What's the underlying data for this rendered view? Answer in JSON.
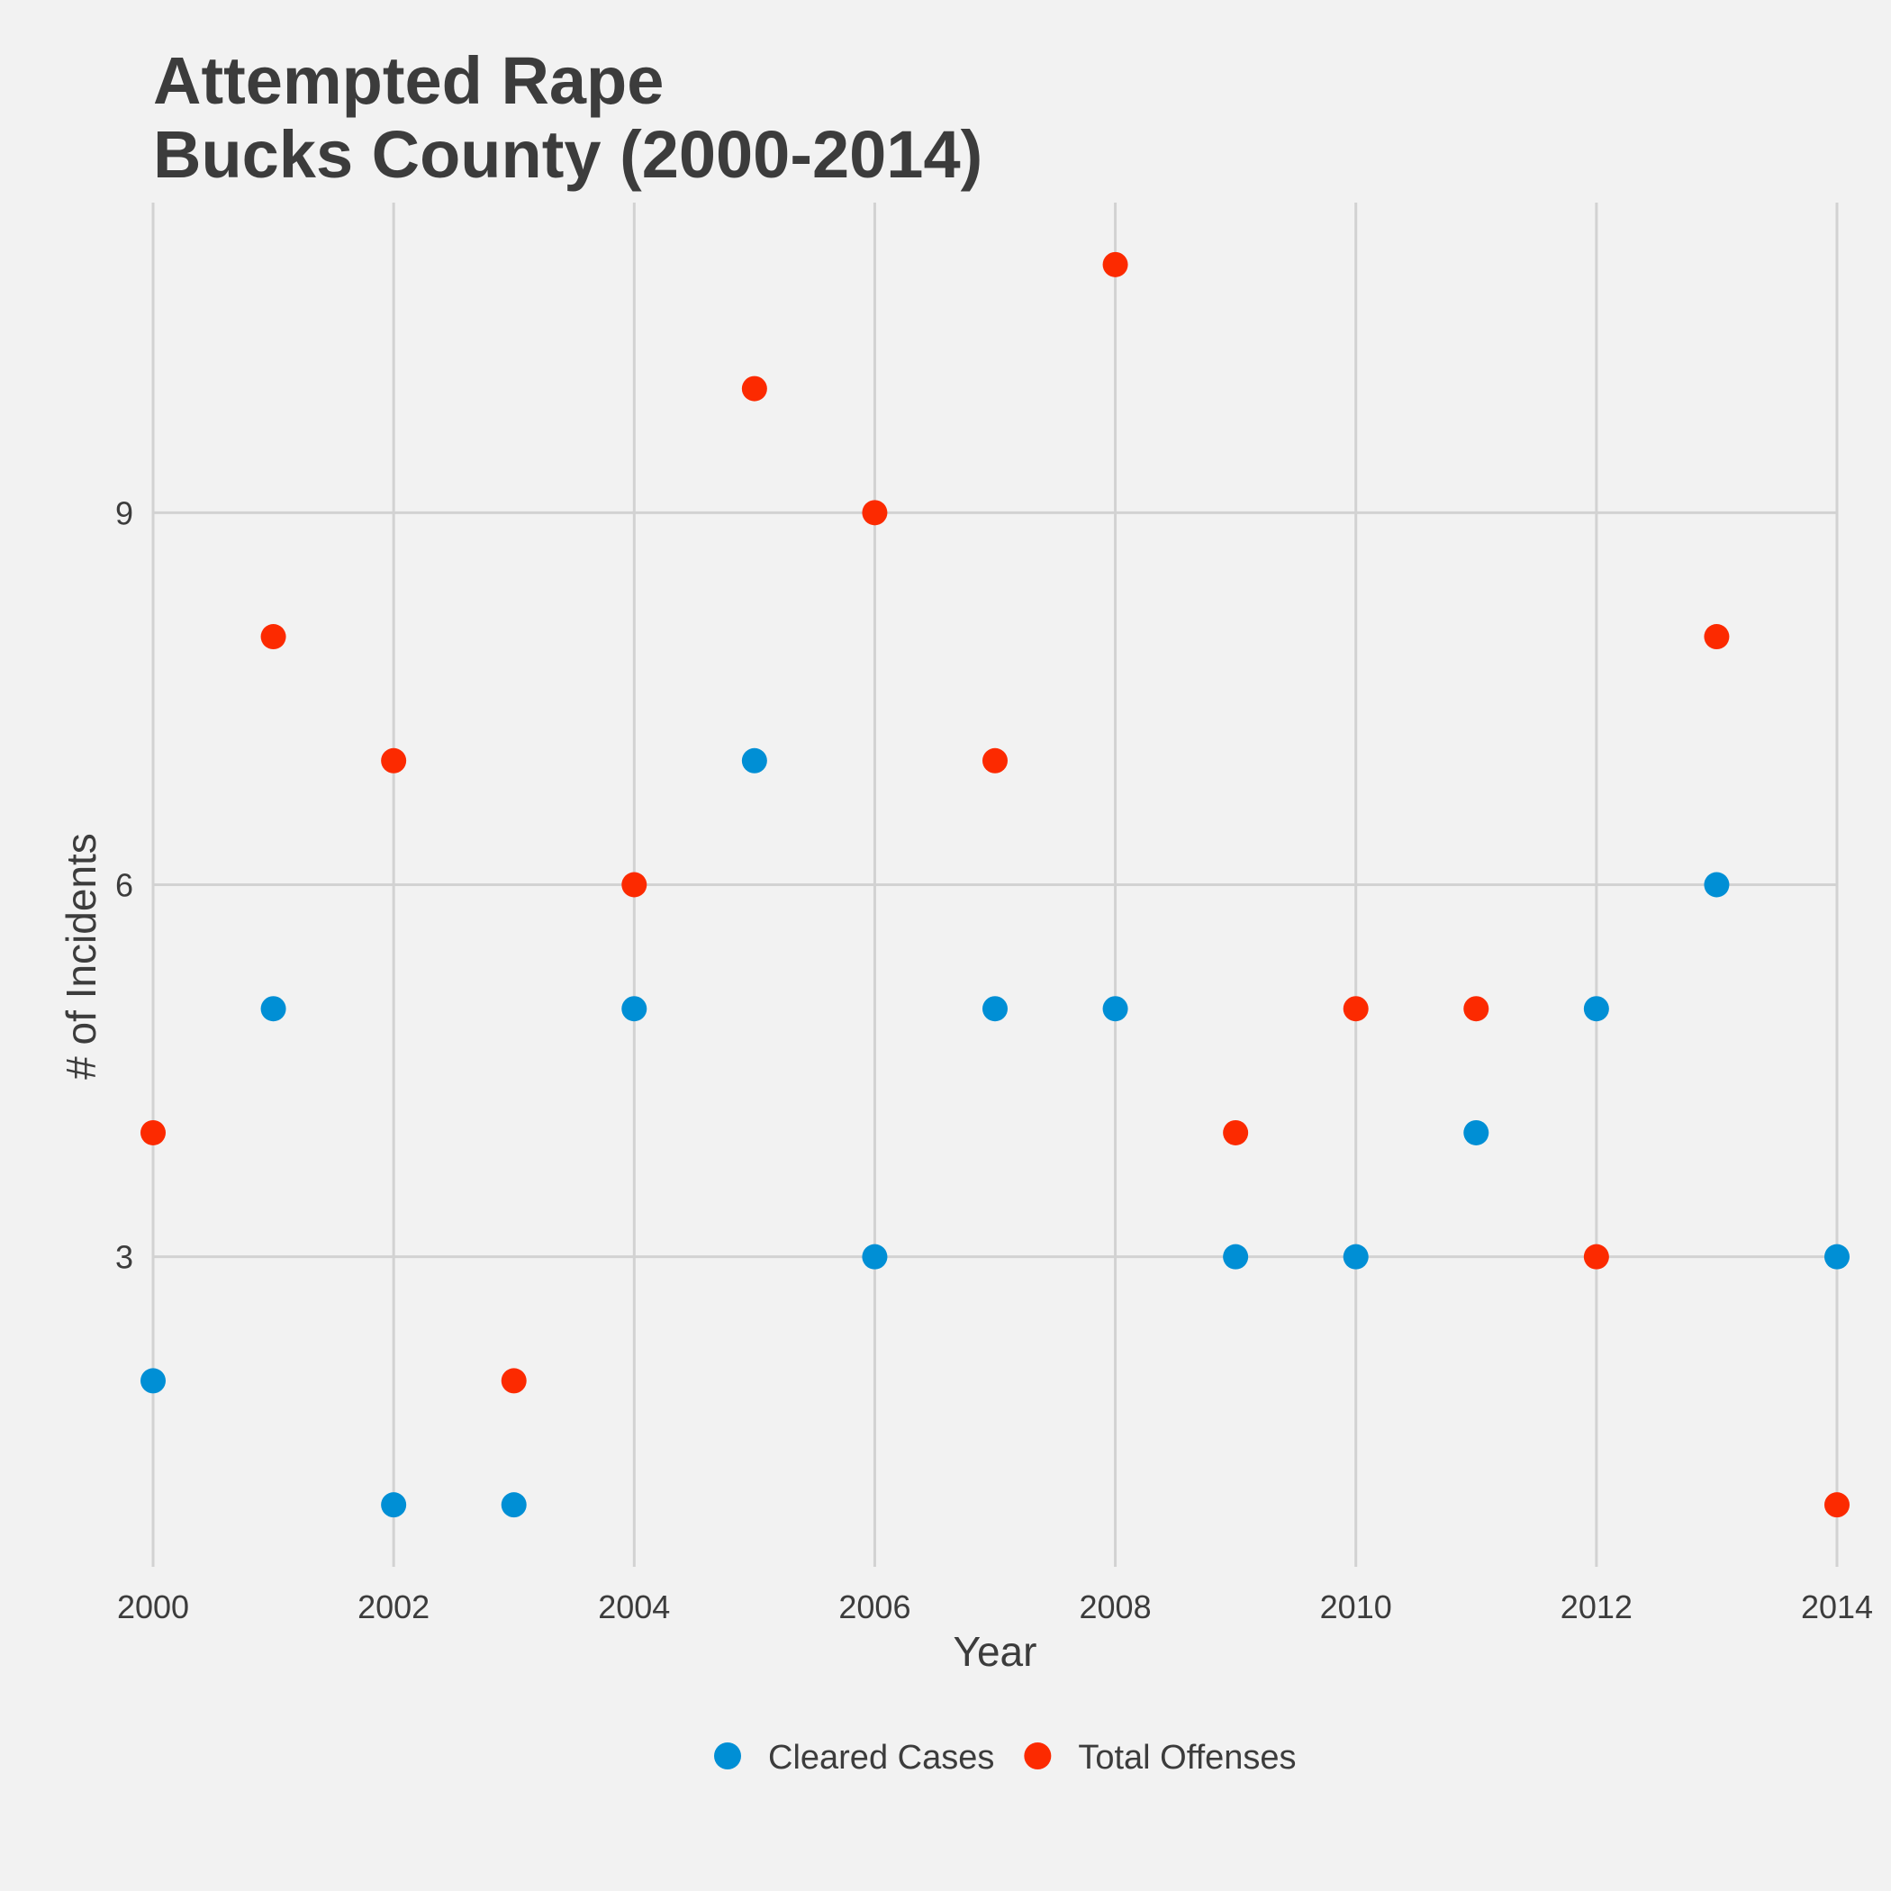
{
  "chart_data": {
    "type": "scatter",
    "title": [
      "Attempted Rape",
      "Bucks County (2000-2014)"
    ],
    "xlabel": "Year",
    "ylabel": "# of Incidents",
    "x": [
      2000,
      2001,
      2002,
      2003,
      2004,
      2005,
      2006,
      2007,
      2008,
      2009,
      2010,
      2011,
      2012,
      2013,
      2014
    ],
    "xticks": [
      2000,
      2002,
      2004,
      2006,
      2008,
      2010,
      2012,
      2014
    ],
    "yticks": [
      3,
      6,
      9
    ],
    "xlim": [
      2000,
      2014
    ],
    "ylim": [
      0.5,
      11.5
    ],
    "grid": true,
    "legend_position": "bottom",
    "series": [
      {
        "name": "Cleared Cases",
        "color": "#008fd5",
        "values": [
          2,
          5,
          1,
          1,
          5,
          7,
          3,
          5,
          5,
          3,
          3,
          4,
          5,
          6,
          3
        ]
      },
      {
        "name": "Total Offenses",
        "color": "#fc2a00",
        "values": [
          4,
          8,
          7,
          2,
          6,
          10,
          9,
          7,
          11,
          4,
          5,
          5,
          3,
          8,
          1
        ]
      }
    ]
  }
}
